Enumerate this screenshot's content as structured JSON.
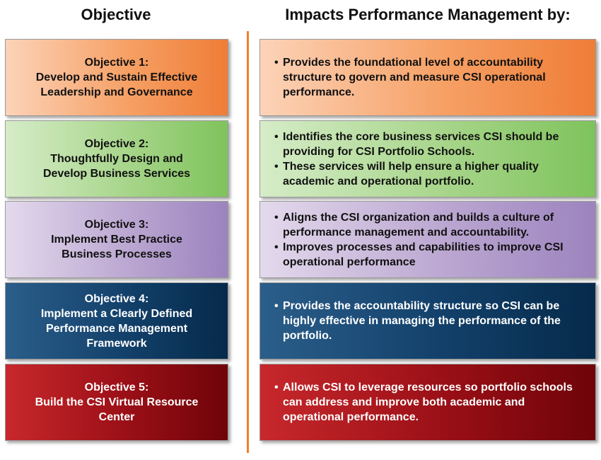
{
  "headers": {
    "left": "Objective",
    "right": "Impacts Performance Management by:"
  },
  "colors": {
    "divider": "#ef7f2a",
    "orange": "#ef7d37",
    "green": "#7fc35c",
    "purple": "#9c83be",
    "navy": "#062a4a",
    "red": "#9a0f16"
  },
  "rows": [
    {
      "objective": [
        "Objective 1:",
        "Develop and Sustain Effective",
        "Leadership and Governance"
      ],
      "impacts": [
        "Provides the foundational level of accountability structure to govern and measure CSI operational performance."
      ]
    },
    {
      "objective": [
        "Objective 2:",
        "Thoughtfully Design and",
        "Develop Business Services"
      ],
      "impacts": [
        "Identifies the core business services CSI should be providing for CSI Portfolio Schools.",
        "These services will help ensure a higher quality academic and operational portfolio."
      ]
    },
    {
      "objective": [
        "Objective 3:",
        "Implement Best Practice",
        "Business Processes"
      ],
      "impacts": [
        "Aligns the CSI organization and builds a culture of performance management and accountability.",
        "Improves processes and capabilities to improve CSI operational performance"
      ]
    },
    {
      "objective": [
        "Objective 4:",
        "Implement a Clearly Defined",
        "Performance Management",
        "Framework"
      ],
      "impacts": [
        "Provides the accountability structure so CSI can be highly effective in managing the performance of the portfolio."
      ]
    },
    {
      "objective": [
        "Objective 5:",
        "Build the CSI Virtual Resource",
        "Center"
      ],
      "impacts": [
        "Allows CSI to leverage resources so portfolio schools can address and improve both academic and operational performance."
      ]
    }
  ]
}
